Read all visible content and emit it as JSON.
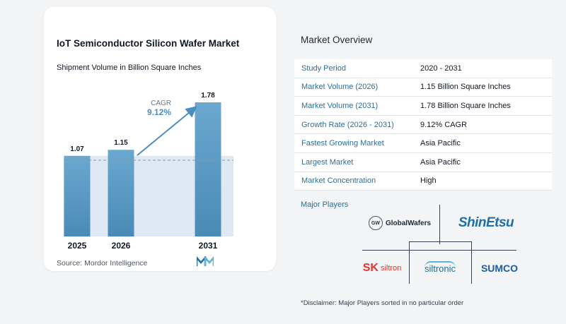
{
  "chart": {
    "title": "IoT Semiconductor Silicon Wafer Market",
    "subtitle": "Shipment Volume in Billion Square Inches",
    "cagr_label": "CAGR",
    "cagr_value": "9.12%",
    "source": "Source:  Mordor Intelligence"
  },
  "chart_data": {
    "type": "bar",
    "title": "IoT Semiconductor Silicon Wafer Market",
    "subtitle": "Shipment Volume in Billion Square Inches",
    "categories": [
      "2025",
      "2026",
      "2031"
    ],
    "values": [
      1.07,
      1.15,
      1.78
    ],
    "value_labels": [
      "1.07",
      "1.15",
      "1.78"
    ],
    "bar_color": "#5b9bc4",
    "annotation": {
      "text": "CAGR 9.12%",
      "from": "2026",
      "to": "2031"
    }
  },
  "overview": {
    "title": "Market Overview",
    "rows": [
      {
        "key": "Study Period",
        "value": "2020 - 2031"
      },
      {
        "key": "Market Volume (2026)",
        "value": "1.15 Billion Square Inches"
      },
      {
        "key": "Market Volume (2031)",
        "value": "1.78 Billion Square Inches"
      },
      {
        "key": "Growth Rate (2026 - 2031)",
        "value": "9.12% CAGR"
      },
      {
        "key": "Fastest Growing Market",
        "value": "Asia Pacific"
      },
      {
        "key": "Largest Market",
        "value": "Asia Pacific"
      },
      {
        "key": "Market Concentration",
        "value": "High"
      }
    ]
  },
  "players": {
    "title": "Major Players",
    "globalwafers": "GlobalWafers",
    "globalwafers_mark": "GW",
    "shinetsu": "ShinEtsu",
    "sk_mark": "SK",
    "sk_name": "siltron",
    "siltronic": "siltronic",
    "sumco": "SUMCO"
  },
  "disclaimer": "*Disclaimer: Major Players sorted in no particular order",
  "colors": {
    "bar": "#5b9bc4",
    "accent": "#2a6f97",
    "arrow": "#4a8fbd"
  }
}
